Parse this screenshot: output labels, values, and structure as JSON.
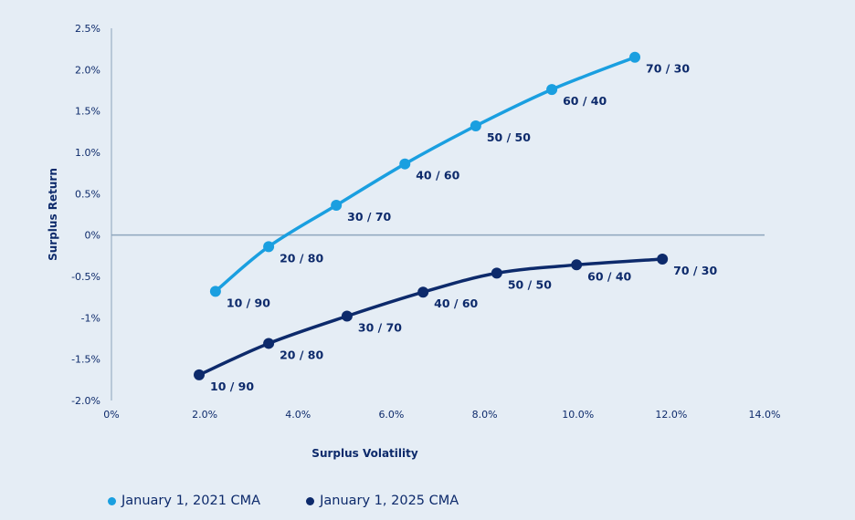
{
  "chart_data": {
    "type": "line",
    "xlabel": "Surplus Volatility",
    "ylabel": "Surplus Return",
    "xlim": [
      0,
      14
    ],
    "ylim": [
      -2.0,
      2.5
    ],
    "x_ticks": [
      "0%",
      "2.0%",
      "4.0%",
      "6.0%",
      "8.0%",
      "10.0%",
      "12.0%",
      "14.0%"
    ],
    "x_tick_values": [
      0,
      2,
      4,
      6,
      8,
      10,
      12,
      14
    ],
    "y_ticks": [
      "2.5%",
      "2.0%",
      "1.5%",
      "1.0%",
      "0.5%",
      "0%",
      "-0.5%",
      "-1%",
      "-1.5%",
      "-2.0%"
    ],
    "y_tick_values": [
      2.5,
      2.0,
      1.5,
      1.0,
      0.5,
      0,
      -0.5,
      -1,
      -1.5,
      -2.0
    ],
    "grid": false,
    "legend_position": "bottom-left",
    "series": [
      {
        "name": "January 1, 2021 CMA",
        "color": "#1a9fe0",
        "x": [
          2.23,
          3.37,
          4.82,
          6.29,
          7.81,
          9.44,
          11.22
        ],
        "y": [
          -0.68,
          -0.14,
          0.36,
          0.86,
          1.32,
          1.76,
          2.15
        ],
        "labels": [
          "10 / 90",
          "20 / 80",
          "30 / 70",
          "40 / 60",
          "50 / 50",
          "60 / 40",
          "70 / 30"
        ]
      },
      {
        "name": "January 1, 2025 CMA",
        "color": "#0d2a6b",
        "x": [
          1.88,
          3.37,
          5.05,
          6.68,
          8.26,
          9.97,
          11.81
        ],
        "y": [
          -1.69,
          -1.31,
          -0.98,
          -0.69,
          -0.46,
          -0.36,
          -0.29
        ],
        "labels": [
          "10 / 90",
          "20 / 80",
          "30 / 70",
          "40 / 60",
          "50 / 50",
          "60 / 40",
          "70 / 30"
        ]
      }
    ]
  }
}
